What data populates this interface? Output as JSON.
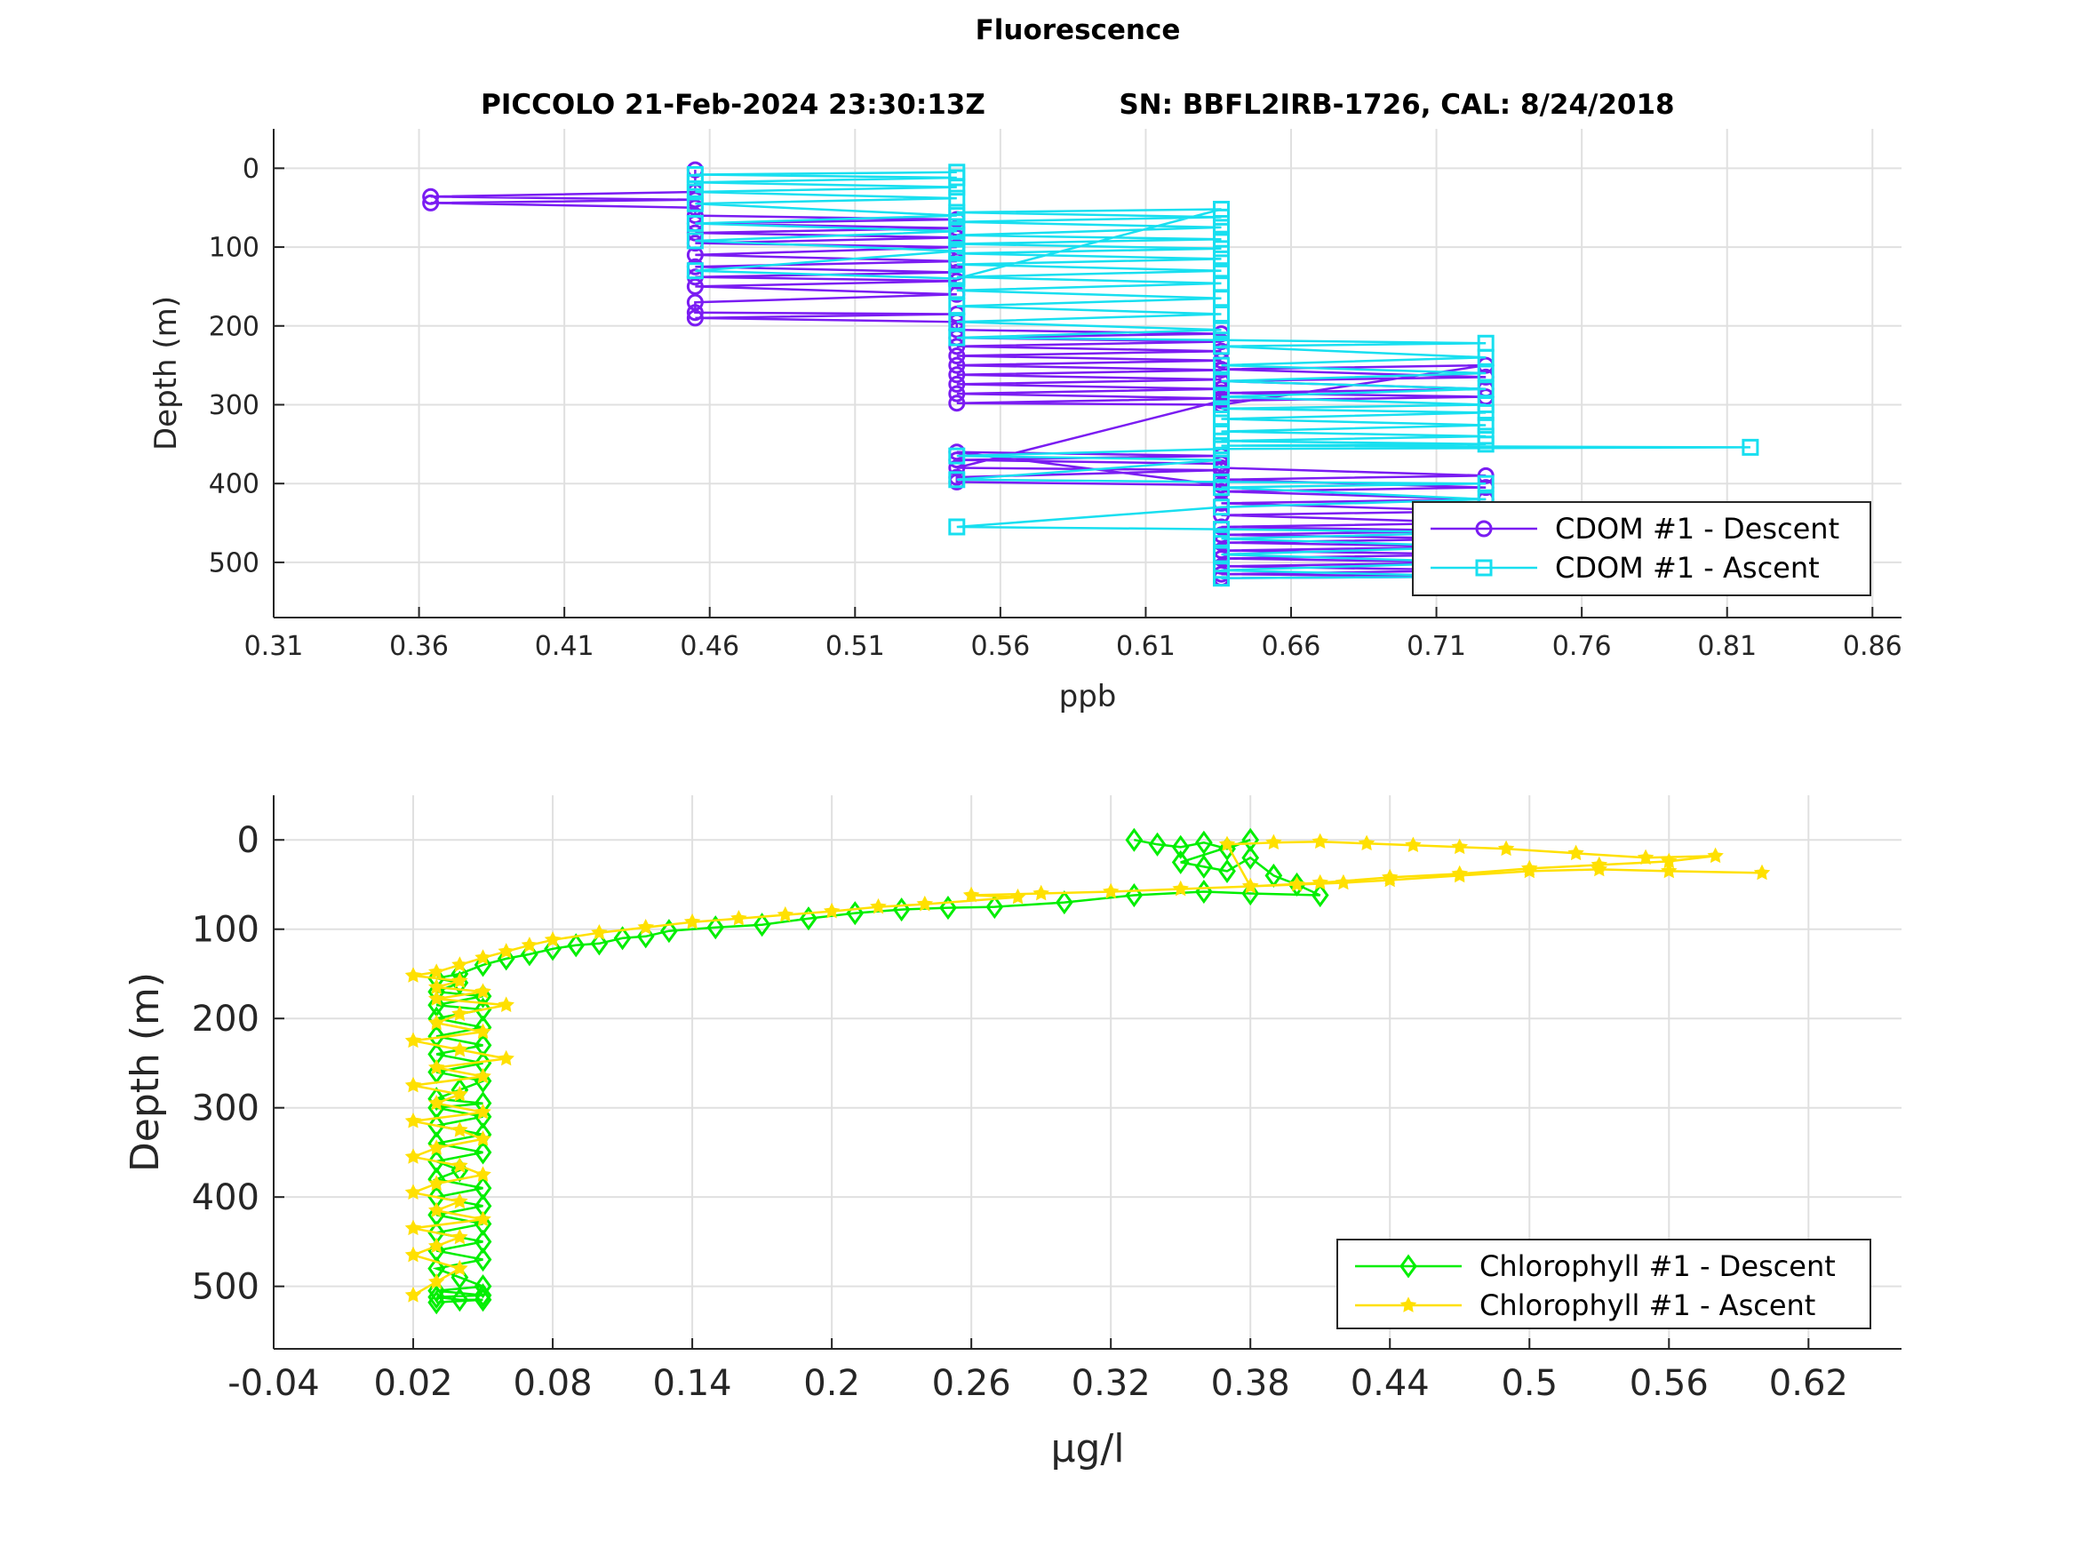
{
  "figure": {
    "title": "Fluorescence",
    "subtitle_left": "PICCOLO 21-Feb-2024 23:30:13Z",
    "subtitle_right": "SN: BBFL2IRB-1726, CAL: 8/24/2018"
  },
  "colors": {
    "cdom_descent": "#7a1cf2",
    "cdom_ascent": "#18dff0",
    "chl_descent": "#00ee00",
    "chl_ascent": "#ffe000",
    "grid": "#e0e0e0",
    "axis": "#262626"
  },
  "chart_data": [
    {
      "type": "line",
      "xlabel": "ppb",
      "ylabel": "Depth (m)",
      "xlim": [
        0.31,
        0.87
      ],
      "ylim": [
        -50,
        570
      ],
      "y_reversed": true,
      "grid": true,
      "xticks": [
        0.31,
        0.36,
        0.41,
        0.46,
        0.51,
        0.56,
        0.61,
        0.66,
        0.71,
        0.76,
        0.81,
        0.86
      ],
      "xtick_labels": [
        "0.31",
        "0.36",
        "0.41",
        "0.46",
        "0.51",
        "0.56",
        "0.61",
        "0.66",
        "0.71",
        "0.76",
        "0.81",
        "0.86"
      ],
      "yticks": [
        0,
        100,
        200,
        300,
        400,
        500
      ],
      "ytick_labels": [
        "0",
        "100",
        "200",
        "300",
        "400",
        "500"
      ],
      "legend_position": "bottom-right",
      "series": [
        {
          "name": "CDOM #1 - Descent",
          "marker": "circle",
          "color": "#7a1cf2",
          "x": [
            0.455,
            0.455,
            0.364,
            0.455,
            0.364,
            0.455,
            0.455,
            0.545,
            0.455,
            0.545,
            0.455,
            0.545,
            0.455,
            0.545,
            0.455,
            0.545,
            0.455,
            0.545,
            0.455,
            0.545,
            0.455,
            0.545,
            0.455,
            0.455,
            0.545,
            0.455,
            0.545,
            0.545,
            0.636,
            0.545,
            0.636,
            0.545,
            0.636,
            0.545,
            0.636,
            0.545,
            0.636,
            0.545,
            0.636,
            0.545,
            0.636,
            0.545,
            0.636,
            0.545,
            0.636,
            0.727,
            0.636,
            0.727,
            0.636,
            0.727,
            0.636,
            0.727,
            0.636,
            0.545,
            0.636,
            0.545,
            0.545,
            0.636,
            0.545,
            0.636,
            0.545,
            0.636,
            0.636,
            0.727,
            0.636,
            0.727,
            0.636,
            0.727,
            0.636,
            0.727,
            0.636,
            0.727,
            0.636,
            0.727,
            0.636,
            0.727,
            0.636,
            0.727,
            0.636,
            0.727,
            0.636,
            0.727,
            0.636,
            0.727,
            0.636,
            0.727,
            0.636
          ],
          "y": [
            2,
            30,
            36,
            40,
            44,
            50,
            60,
            65,
            70,
            76,
            82,
            88,
            95,
            100,
            110,
            118,
            125,
            132,
            138,
            143,
            150,
            160,
            170,
            183,
            185,
            190,
            195,
            205,
            210,
            215,
            220,
            226,
            232,
            238,
            244,
            250,
            256,
            262,
            268,
            274,
            280,
            286,
            292,
            298,
            300,
            250,
            255,
            265,
            270,
            280,
            285,
            290,
            295,
            380,
            383,
            392,
            398,
            402,
            360,
            365,
            370,
            375,
            380,
            390,
            395,
            405,
            410,
            420,
            425,
            435,
            440,
            450,
            455,
            460,
            465,
            470,
            475,
            480,
            485,
            490,
            495,
            500,
            505,
            510,
            515,
            518,
            520
          ]
        },
        {
          "name": "CDOM #1 - Ascent",
          "marker": "square",
          "color": "#18dff0",
          "x": [
            0.545,
            0.455,
            0.545,
            0.455,
            0.545,
            0.455,
            0.545,
            0.455,
            0.545,
            0.455,
            0.545,
            0.455,
            0.545,
            0.455,
            0.545,
            0.636,
            0.545,
            0.636,
            0.545,
            0.636,
            0.545,
            0.636,
            0.545,
            0.636,
            0.545,
            0.636,
            0.545,
            0.636,
            0.545,
            0.636,
            0.545,
            0.636,
            0.545,
            0.636,
            0.545,
            0.636,
            0.545,
            0.636,
            0.727,
            0.636,
            0.727,
            0.636,
            0.727,
            0.636,
            0.727,
            0.636,
            0.727,
            0.636,
            0.727,
            0.636,
            0.727,
            0.636,
            0.727,
            0.636,
            0.727,
            0.636,
            0.818,
            0.636,
            0.545,
            0.636,
            0.545,
            0.636,
            0.727,
            0.636,
            0.727,
            0.636,
            0.545,
            0.636,
            0.727,
            0.636,
            0.727,
            0.636,
            0.727,
            0.636,
            0.727,
            0.636
          ],
          "y": [
            5,
            8,
            12,
            18,
            24,
            30,
            38,
            45,
            60,
            70,
            80,
            92,
            105,
            130,
            140,
            52,
            56,
            62,
            68,
            75,
            85,
            90,
            96,
            102,
            108,
            115,
            122,
            130,
            138,
            146,
            155,
            165,
            175,
            185,
            195,
            205,
            215,
            218,
            222,
            226,
            240,
            250,
            260,
            270,
            280,
            290,
            300,
            305,
            310,
            318,
            326,
            334,
            340,
            346,
            350,
            352,
            354,
            356,
            365,
            370,
            395,
            398,
            400,
            405,
            420,
            430,
            455,
            458,
            462,
            470,
            480,
            490,
            500,
            510,
            518,
            520
          ]
        }
      ]
    },
    {
      "type": "line",
      "xlabel": "μg/l",
      "ylabel": "Depth (m)",
      "xlim": [
        -0.04,
        0.66
      ],
      "ylim": [
        -50,
        570
      ],
      "y_reversed": true,
      "grid": true,
      "xticks": [
        -0.04,
        0.02,
        0.08,
        0.14,
        0.2,
        0.26,
        0.32,
        0.38,
        0.44,
        0.5,
        0.56,
        0.62
      ],
      "xtick_labels": [
        "-0.04",
        "0.02",
        "0.08",
        "0.14",
        "0.2",
        "0.26",
        "0.32",
        "0.38",
        "0.44",
        "0.5",
        "0.56",
        "0.62"
      ],
      "yticks": [
        0,
        100,
        200,
        300,
        400,
        500
      ],
      "ytick_labels": [
        "0",
        "100",
        "200",
        "300",
        "400",
        "500"
      ],
      "legend_position": "bottom-right",
      "series": [
        {
          "name": "Chlorophyll #1 - Descent",
          "marker": "diamond",
          "color": "#00ee00",
          "x": [
            0.33,
            0.34,
            0.35,
            0.36,
            0.37,
            0.38,
            0.35,
            0.36,
            0.37,
            0.38,
            0.39,
            0.4,
            0.41,
            0.38,
            0.36,
            0.33,
            0.3,
            0.27,
            0.25,
            0.23,
            0.21,
            0.19,
            0.17,
            0.15,
            0.13,
            0.12,
            0.11,
            0.1,
            0.09,
            0.08,
            0.07,
            0.06,
            0.05,
            0.04,
            0.03,
            0.04,
            0.03,
            0.05,
            0.03,
            0.05,
            0.03,
            0.05,
            0.03,
            0.05,
            0.03,
            0.05,
            0.03,
            0.05,
            0.04,
            0.03,
            0.05,
            0.03,
            0.05,
            0.03,
            0.05,
            0.03,
            0.05,
            0.03,
            0.04,
            0.03,
            0.05,
            0.03,
            0.05,
            0.03,
            0.05,
            0.03,
            0.05,
            0.03,
            0.05,
            0.03,
            0.04,
            0.05,
            0.03,
            0.05,
            0.03,
            0.04,
            0.05,
            0.03
          ],
          "y": [
            0,
            5,
            8,
            3,
            10,
            0,
            25,
            30,
            35,
            20,
            40,
            50,
            62,
            60,
            58,
            62,
            70,
            75,
            76,
            78,
            82,
            88,
            95,
            98,
            102,
            108,
            110,
            116,
            118,
            122,
            128,
            133,
            140,
            150,
            155,
            160,
            170,
            175,
            185,
            190,
            200,
            210,
            220,
            230,
            240,
            250,
            260,
            270,
            280,
            290,
            295,
            300,
            310,
            320,
            330,
            340,
            350,
            360,
            370,
            380,
            390,
            400,
            410,
            420,
            430,
            440,
            450,
            460,
            470,
            480,
            490,
            500,
            505,
            510,
            512,
            515,
            515,
            518
          ]
        },
        {
          "name": "Chlorophyll #1 - Ascent",
          "marker": "star",
          "color": "#ffe000",
          "x": [
            0.6,
            0.56,
            0.53,
            0.5,
            0.47,
            0.44,
            0.42,
            0.4,
            0.38,
            0.37,
            0.39,
            0.41,
            0.43,
            0.45,
            0.47,
            0.49,
            0.52,
            0.55,
            0.58,
            0.56,
            0.53,
            0.5,
            0.47,
            0.44,
            0.41,
            0.38,
            0.35,
            0.32,
            0.29,
            0.26,
            0.28,
            0.24,
            0.22,
            0.2,
            0.18,
            0.16,
            0.14,
            0.12,
            0.1,
            0.08,
            0.07,
            0.06,
            0.05,
            0.04,
            0.03,
            0.02,
            0.04,
            0.03,
            0.05,
            0.03,
            0.06,
            0.04,
            0.03,
            0.05,
            0.02,
            0.04,
            0.06,
            0.03,
            0.05,
            0.02,
            0.04,
            0.03,
            0.05,
            0.02,
            0.04,
            0.05,
            0.03,
            0.02,
            0.04,
            0.05,
            0.03,
            0.02,
            0.04,
            0.03,
            0.05,
            0.02,
            0.04,
            0.03,
            0.02,
            0.04,
            0.03,
            0.02
          ],
          "y": [
            37,
            35,
            33,
            35,
            40,
            45,
            48,
            50,
            52,
            5,
            3,
            2,
            4,
            6,
            8,
            10,
            15,
            20,
            18,
            24,
            28,
            32,
            38,
            42,
            48,
            52,
            55,
            58,
            60,
            62,
            64,
            72,
            75,
            80,
            84,
            88,
            92,
            98,
            104,
            112,
            118,
            125,
            132,
            140,
            148,
            152,
            158,
            165,
            170,
            178,
            185,
            195,
            205,
            215,
            225,
            235,
            245,
            255,
            265,
            275,
            285,
            295,
            305,
            315,
            325,
            335,
            345,
            355,
            365,
            375,
            385,
            395,
            405,
            415,
            425,
            435,
            445,
            455,
            465,
            480,
            495,
            510
          ]
        }
      ]
    }
  ]
}
